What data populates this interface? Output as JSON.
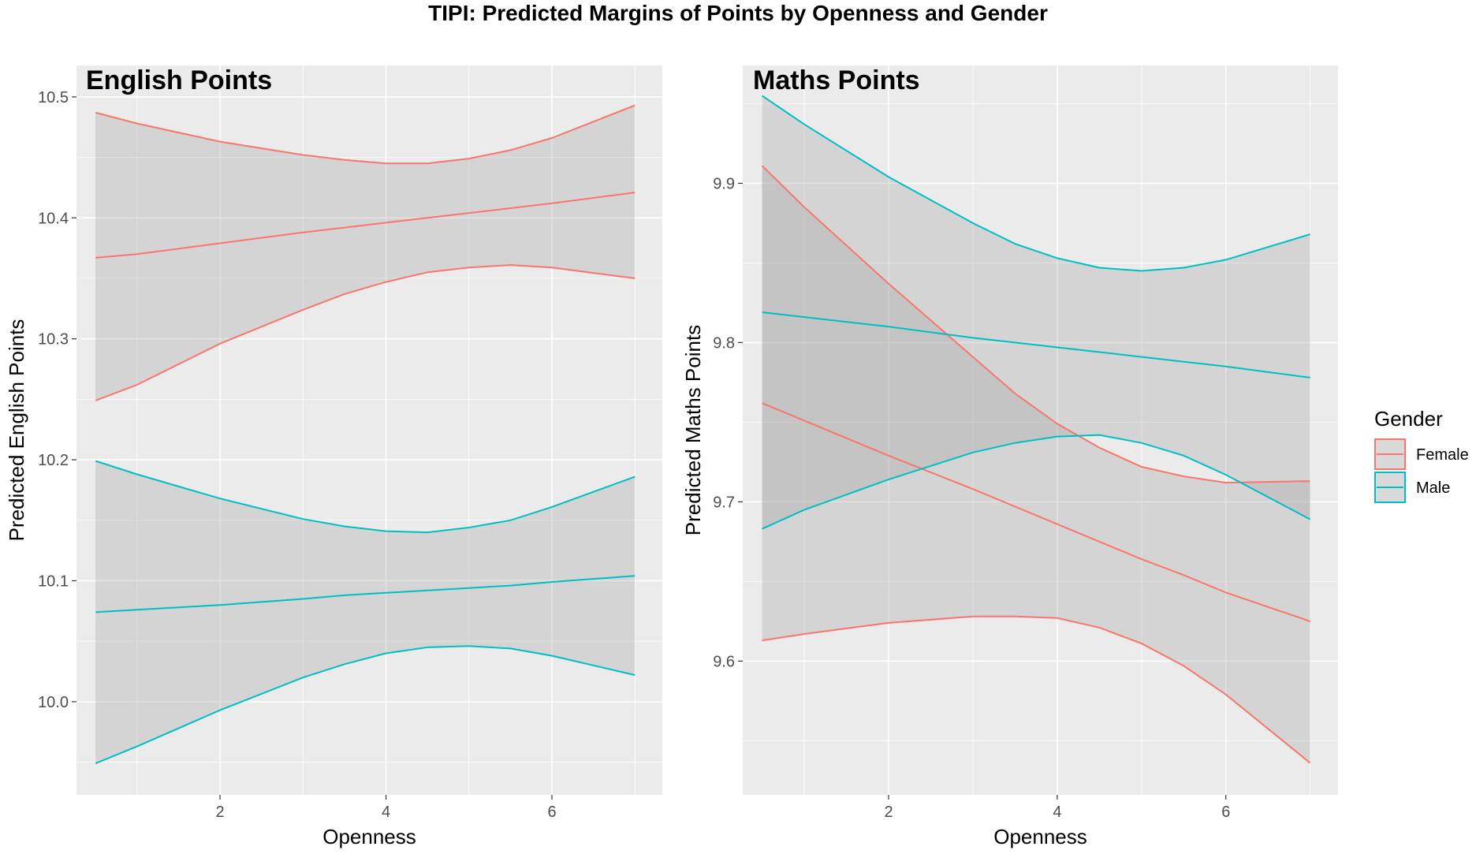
{
  "chart_title": "TIPI: Predicted Margins of Points by Openness and Gender",
  "colors": {
    "female": "#F8766D",
    "male": "#00BFC4",
    "panel_bg": "#EBEBEB",
    "grid": "#FFFFFF",
    "ribbon": "#A0A0A0"
  },
  "legend": {
    "title": "Gender",
    "position": "right",
    "items": [
      "Female",
      "Male"
    ]
  },
  "chart_data": [
    {
      "type": "line",
      "title": "English Points",
      "xlabel": "Openness",
      "ylabel": "Predicted English Points",
      "xlim": [
        0.27,
        7.33
      ],
      "ylim": [
        9.923,
        10.526
      ],
      "x_ticks": [
        2,
        4,
        6
      ],
      "x_tick_labels": [
        "2",
        "4",
        "6"
      ],
      "y_ticks": [
        10.0,
        10.1,
        10.2,
        10.3,
        10.4,
        10.5
      ],
      "y_tick_labels": [
        "10.0",
        "10.1",
        "10.2",
        "10.3",
        "10.4",
        "10.5"
      ],
      "grid": true,
      "series": [
        {
          "name": "Female",
          "x": [
            0.5,
            1,
            2,
            3,
            3.5,
            4,
            4.5,
            5,
            5.5,
            6,
            7
          ],
          "fit": [
            10.367,
            10.37,
            10.379,
            10.388,
            10.392,
            10.396,
            10.4,
            10.404,
            10.408,
            10.412,
            10.421
          ],
          "lower": [
            10.249,
            10.262,
            10.296,
            10.324,
            10.337,
            10.347,
            10.355,
            10.359,
            10.361,
            10.359,
            10.35
          ],
          "upper": [
            10.487,
            10.478,
            10.463,
            10.452,
            10.448,
            10.445,
            10.445,
            10.449,
            10.456,
            10.466,
            10.493
          ]
        },
        {
          "name": "Male",
          "x": [
            0.5,
            1,
            2,
            3,
            3.5,
            4,
            4.5,
            5,
            5.5,
            6,
            7
          ],
          "fit": [
            10.074,
            10.076,
            10.08,
            10.085,
            10.088,
            10.09,
            10.092,
            10.094,
            10.096,
            10.099,
            10.104
          ],
          "lower": [
            9.949,
            9.963,
            9.993,
            10.02,
            10.031,
            10.04,
            10.045,
            10.046,
            10.044,
            10.038,
            10.022
          ],
          "upper": [
            10.199,
            10.188,
            10.168,
            10.151,
            10.145,
            10.141,
            10.14,
            10.144,
            10.15,
            10.161,
            10.186
          ]
        }
      ]
    },
    {
      "type": "line",
      "title": "Maths Points",
      "xlabel": "Openness",
      "ylabel": "Predicted Maths Points",
      "xlim": [
        0.27,
        7.33
      ],
      "ylim": [
        9.516,
        9.974
      ],
      "x_ticks": [
        2,
        4,
        6
      ],
      "x_tick_labels": [
        "2",
        "4",
        "6"
      ],
      "y_ticks": [
        9.6,
        9.7,
        9.8,
        9.9
      ],
      "y_tick_labels": [
        "9.6",
        "9.7",
        "9.8",
        "9.9"
      ],
      "grid": true,
      "series": [
        {
          "name": "Female",
          "x": [
            0.5,
            1,
            2,
            3,
            3.5,
            4,
            4.5,
            5,
            5.5,
            6,
            7
          ],
          "fit": [
            9.762,
            9.751,
            9.729,
            9.708,
            9.697,
            9.686,
            9.675,
            9.664,
            9.654,
            9.643,
            9.625
          ],
          "lower": [
            9.613,
            9.617,
            9.624,
            9.628,
            9.628,
            9.627,
            9.621,
            9.611,
            9.597,
            9.579,
            9.536
          ],
          "upper": [
            9.911,
            9.885,
            9.837,
            9.791,
            9.768,
            9.749,
            9.734,
            9.722,
            9.716,
            9.712,
            9.713
          ]
        },
        {
          "name": "Male",
          "x": [
            0.5,
            1,
            2,
            3,
            3.5,
            4,
            4.5,
            5,
            5.5,
            6,
            7
          ],
          "fit": [
            9.819,
            9.816,
            9.81,
            9.803,
            9.8,
            9.797,
            9.794,
            9.791,
            9.788,
            9.785,
            9.778
          ],
          "lower": [
            9.683,
            9.695,
            9.714,
            9.731,
            9.737,
            9.741,
            9.742,
            9.737,
            9.729,
            9.717,
            9.689
          ],
          "upper": [
            9.955,
            9.937,
            9.904,
            9.875,
            9.862,
            9.853,
            9.847,
            9.845,
            9.847,
            9.852,
            9.868
          ]
        }
      ]
    }
  ]
}
